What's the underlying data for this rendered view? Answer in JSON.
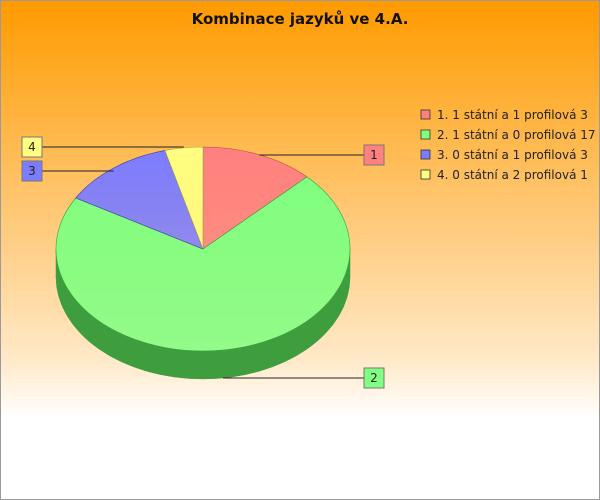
{
  "chart_data": {
    "type": "pie",
    "title": "Kombinace jazyků ve 4.A.",
    "slices": [
      {
        "id": "1",
        "label": "1. 1 státní a 1 profilová 3",
        "value": 3,
        "color": "#ff8080",
        "dark": "#b04848"
      },
      {
        "id": "2",
        "label": "2. 1 státní a 0 profilová 17",
        "value": 17,
        "color": "#80ff80",
        "dark": "#3e9e3e"
      },
      {
        "id": "3",
        "label": "3. 0 státní a 1 profilová 3",
        "value": 3,
        "color": "#7c7cff",
        "dark": "#3a3aa8"
      },
      {
        "id": "4",
        "label": "4. 0 státní a 2 profilová 1",
        "value": 1,
        "color": "#ffff80",
        "dark": "#a8a84a"
      }
    ],
    "legend_position": "right",
    "style": "3d"
  }
}
